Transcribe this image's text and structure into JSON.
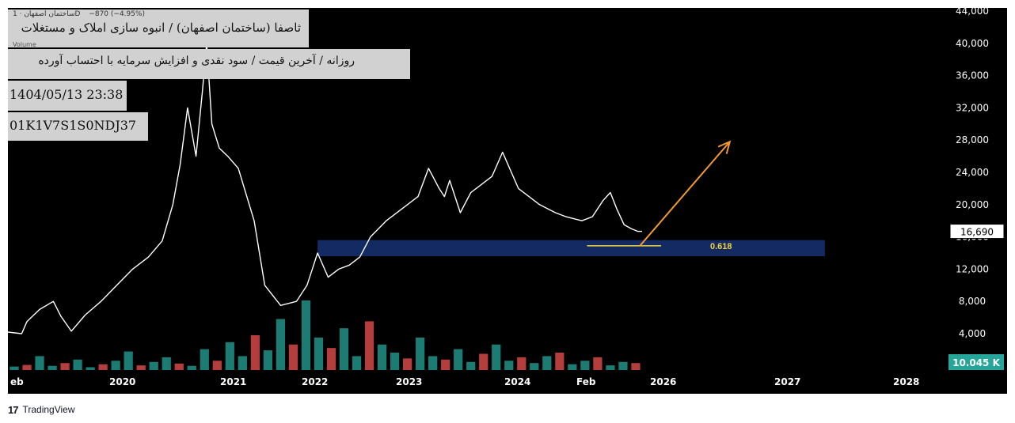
{
  "header": {
    "legend": "ساختمان اصفهان · 1D",
    "change": "−870 (−4.95%)",
    "volume_label": "Volume"
  },
  "overlay": {
    "title": "ثاصفا (ساختمان اصفهان) / انبوه سازی املاک و مستغلات",
    "subtitle": "روزانه / آخرین قیمت / سود نقدی و افزایش سرمایه با احتساب آورده",
    "datetime": "1404/05/13 23:38",
    "code": "01K1V7S1S0NDJ37"
  },
  "price_badge": "16,690",
  "volume_badge": "10.045 K",
  "fib_label": "0.618",
  "footer": {
    "brand": "TradingView"
  },
  "colors": {
    "background": "#000000",
    "price_line": "#ffffff",
    "zone": "#132a63",
    "fib_line": "#f2d43a",
    "arrow": "#f29a2e",
    "volume_up": "#26a69a",
    "volume_down": "#ef5350",
    "volume_badge": "#26a69a"
  },
  "chart_data": {
    "type": "line",
    "x_tick_labels": [
      "eb",
      "2020",
      "2021",
      "2022",
      "2023",
      "2024",
      "Feb",
      "2026",
      "2027",
      "2028"
    ],
    "y_tick_labels": [
      "4,000",
      "8,000",
      "12,000",
      "16,000",
      "20,000",
      "24,000",
      "28,000",
      "32,000",
      "36,000",
      "40,000",
      "44,000"
    ],
    "ylim": [
      0,
      44000
    ],
    "x_unit": "year",
    "xlim": [
      2019.12,
      2028.1
    ],
    "price_series": {
      "x": [
        2019.12,
        2019.25,
        2019.3,
        2019.42,
        2019.55,
        2019.62,
        2019.72,
        2019.85,
        2020.0,
        2020.15,
        2020.3,
        2020.45,
        2020.58,
        2020.68,
        2020.75,
        2020.82,
        2020.9,
        2020.96,
        2021.0,
        2021.05,
        2021.12,
        2021.2,
        2021.3,
        2021.45,
        2021.55,
        2021.7,
        2021.85,
        2021.95,
        2022.05,
        2022.15,
        2022.25,
        2022.35,
        2022.45,
        2022.55,
        2022.7,
        2022.85,
        2023.0,
        2023.1,
        2023.2,
        2023.25,
        2023.3,
        2023.4,
        2023.5,
        2023.6,
        2023.7,
        2023.8,
        2023.95,
        2024.05,
        2024.15,
        2024.3,
        2024.4,
        2024.55,
        2024.65,
        2024.75,
        2024.82,
        2024.88,
        2024.95,
        2025.02,
        2025.08,
        2025.12
      ],
      "y": [
        4200,
        4000,
        5500,
        7000,
        8000,
        6200,
        4300,
        6300,
        8000,
        10000,
        12000,
        13500,
        15500,
        20000,
        25000,
        32000,
        26000,
        34000,
        40000,
        30000,
        27000,
        26000,
        24500,
        18000,
        10000,
        7500,
        8000,
        10000,
        14000,
        11000,
        12000,
        12500,
        13500,
        16000,
        18000,
        19500,
        21000,
        24500,
        22000,
        21000,
        23000,
        19000,
        21500,
        22500,
        23500,
        26500,
        22000,
        21000,
        20000,
        19000,
        18500,
        18000,
        18500,
        20500,
        21500,
        19500,
        17500,
        17000,
        16690,
        16690
      ]
    },
    "volume": {
      "ylim": [
        0,
        300
      ],
      "values": [
        15,
        22,
        60,
        18,
        30,
        45,
        12,
        25,
        40,
        80,
        20,
        35,
        55,
        28,
        18,
        90,
        40,
        120,
        60,
        150,
        85,
        220,
        110,
        300,
        140,
        95,
        180,
        60,
        210,
        110,
        75,
        50,
        140,
        60,
        45,
        90,
        35,
        70,
        110,
        40,
        55,
        30,
        60,
        75,
        25,
        40,
        55,
        20,
        35,
        30
      ]
    },
    "support_zone": {
      "y_from": 13600,
      "y_to": 15600,
      "x_from": 2022.05,
      "x_to": 2026.85
    },
    "fib_level": {
      "name": "0.618",
      "y": 14900,
      "x_from": 2024.6,
      "x_to": 2025.3
    },
    "arrow": {
      "x_from": 2025.1,
      "y_from": 14900,
      "x_to": 2025.95,
      "y_to": 27800
    },
    "last_price": 16690,
    "last_volume": "10.045 K"
  }
}
